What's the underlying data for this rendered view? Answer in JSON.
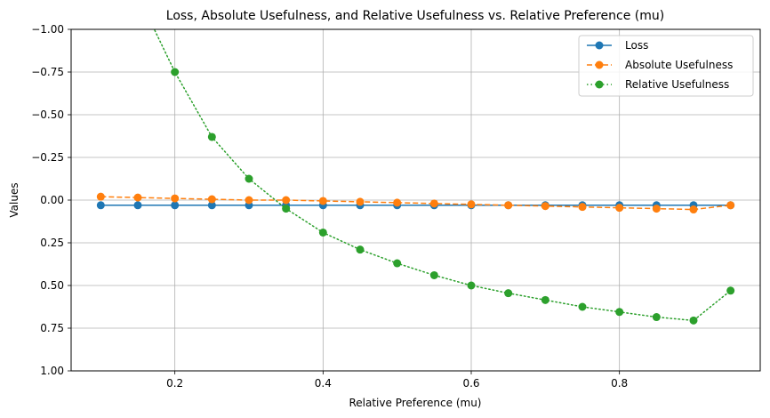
{
  "chart_data": {
    "type": "line",
    "title": "Loss, Absolute Usefulness, and Relative Usefulness vs. Relative Preference (mu)",
    "xlabel": "Relative Preference (mu)",
    "ylabel": "Values",
    "xlim": [
      0.06,
      0.99
    ],
    "ylim": [
      -1.0,
      1.0
    ],
    "y_inverted": true,
    "grid": true,
    "legend_position": "top-right",
    "x_ticks": [
      0.2,
      0.4,
      0.6,
      0.8
    ],
    "x_tick_labels": [
      "0.2",
      "0.4",
      "0.6",
      "0.8"
    ],
    "y_ticks": [
      -1.0,
      -0.75,
      -0.5,
      -0.25,
      0.0,
      0.25,
      0.5,
      0.75,
      1.0
    ],
    "y_tick_labels": [
      "−1.00",
      "−0.75",
      "−0.50",
      "−0.25",
      "0.00",
      "0.25",
      "0.50",
      "0.75",
      "1.00"
    ],
    "x": [
      0.1,
      0.15,
      0.2,
      0.25,
      0.3,
      0.35,
      0.4,
      0.45,
      0.5,
      0.55,
      0.6,
      0.65,
      0.7,
      0.75,
      0.8,
      0.85,
      0.9,
      0.95
    ],
    "series": [
      {
        "name": "Loss",
        "color": "#1f77b4",
        "linestyle": "solid",
        "marker": "circle",
        "values": [
          0.03,
          0.03,
          0.03,
          0.03,
          0.03,
          0.03,
          0.03,
          0.03,
          0.03,
          0.03,
          0.03,
          0.03,
          0.03,
          0.03,
          0.03,
          0.03,
          0.03,
          0.03
        ]
      },
      {
        "name": "Absolute Usefulness",
        "color": "#ff7f0e",
        "linestyle": "dashed",
        "marker": "circle",
        "values": [
          -0.02,
          -0.015,
          -0.01,
          -0.005,
          0.0,
          0.0,
          0.005,
          0.01,
          0.015,
          0.02,
          0.025,
          0.03,
          0.035,
          0.04,
          0.045,
          0.05,
          0.055,
          0.03
        ]
      },
      {
        "name": "Relative Usefulness",
        "color": "#2ca02c",
        "linestyle": "dotted",
        "marker": "circle",
        "curve_extra": [
          {
            "x": 0.1,
            "y": -1.7
          },
          {
            "x": 0.15,
            "y": -1.2
          }
        ],
        "values": [
          null,
          null,
          -0.75,
          -0.37,
          -0.125,
          0.05,
          0.19,
          0.29,
          0.37,
          0.44,
          0.5,
          0.545,
          0.585,
          0.625,
          0.655,
          0.685,
          0.705,
          0.53
        ]
      }
    ]
  }
}
